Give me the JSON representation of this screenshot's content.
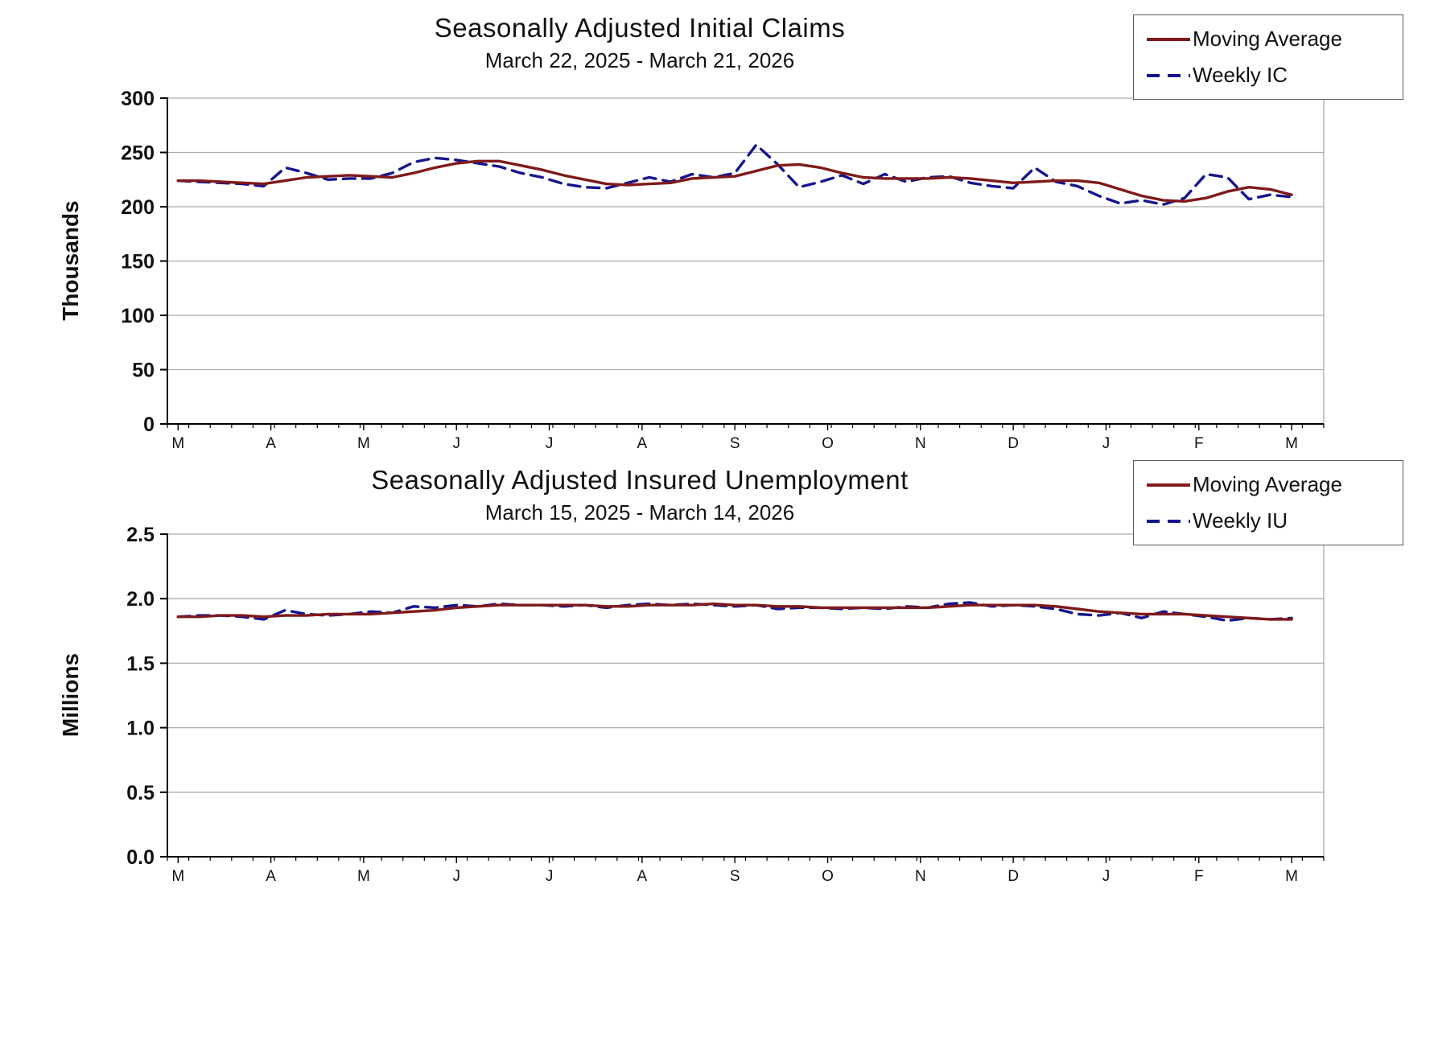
{
  "page": {
    "background": "#ffffff"
  },
  "colors": {
    "moving_average": "#7f1a1a",
    "weekly": "#15158d",
    "gridline": "#ababab",
    "axis": "#000000",
    "text": "#111111"
  },
  "chart_data": [
    {
      "type": "line",
      "title": "Seasonally Adjusted Initial Claims",
      "subtitle": "March 22, 2025 - March 21, 2026",
      "xlabel": "",
      "ylabel": "Thousands",
      "ylim": [
        0,
        300
      ],
      "yticks": [
        0,
        50,
        100,
        150,
        200,
        250,
        300
      ],
      "ytick_labels": [
        "0",
        "50",
        "100",
        "150",
        "200",
        "250",
        "300"
      ],
      "xtick_labels": [
        "M",
        "A",
        "M",
        "J",
        "J",
        "A",
        "S",
        "O",
        "N",
        "D",
        "J",
        "F",
        "M"
      ],
      "grid": true,
      "legend_position": "top-right",
      "series": [
        {
          "name": "Moving Average",
          "color": "#7f1a1a",
          "style": "solid",
          "values": [
            224,
            224,
            223,
            222,
            221,
            224,
            227,
            228,
            229,
            228,
            227,
            231,
            236,
            240,
            242,
            242,
            238,
            234,
            229,
            225,
            221,
            220,
            221,
            222,
            226,
            227,
            228,
            233,
            238,
            239,
            236,
            231,
            227,
            226,
            226,
            226,
            227,
            226,
            224,
            222,
            223,
            224,
            224,
            222,
            216,
            210,
            206,
            205,
            208,
            214,
            218,
            216,
            211
          ]
        },
        {
          "name": "Weekly IC",
          "color": "#15158d",
          "style": "dashed",
          "values": [
            224,
            223,
            222,
            221,
            219,
            236,
            231,
            225,
            226,
            226,
            231,
            241,
            245,
            243,
            240,
            237,
            231,
            227,
            221,
            218,
            217,
            222,
            227,
            223,
            230,
            227,
            231,
            257,
            239,
            218,
            223,
            229,
            221,
            230,
            223,
            227,
            228,
            222,
            219,
            217,
            236,
            223,
            219,
            210,
            203,
            206,
            202,
            208,
            230,
            227,
            207,
            211,
            209
          ]
        }
      ]
    },
    {
      "type": "line",
      "title": "Seasonally Adjusted Insured Unemployment",
      "subtitle": "March 15, 2025 - March 14, 2026",
      "xlabel": "",
      "ylabel": "Millions",
      "ylim": [
        0,
        2.5
      ],
      "yticks": [
        0,
        0.5,
        1.0,
        1.5,
        2.0,
        2.5
      ],
      "ytick_labels": [
        "0.0",
        "0.5",
        "1.0",
        "1.5",
        "2.0",
        "2.5"
      ],
      "xtick_labels": [
        "M",
        "A",
        "M",
        "J",
        "J",
        "A",
        "S",
        "O",
        "N",
        "D",
        "J",
        "F",
        "M"
      ],
      "grid": true,
      "legend_position": "top-right",
      "series": [
        {
          "name": "Moving Average",
          "color": "#7f1a1a",
          "style": "solid",
          "values": [
            1.86,
            1.86,
            1.87,
            1.87,
            1.86,
            1.87,
            1.87,
            1.88,
            1.88,
            1.88,
            1.89,
            1.9,
            1.91,
            1.93,
            1.94,
            1.95,
            1.95,
            1.95,
            1.95,
            1.95,
            1.94,
            1.94,
            1.95,
            1.95,
            1.95,
            1.96,
            1.95,
            1.95,
            1.94,
            1.94,
            1.93,
            1.93,
            1.93,
            1.93,
            1.93,
            1.93,
            1.94,
            1.95,
            1.95,
            1.95,
            1.95,
            1.94,
            1.92,
            1.9,
            1.89,
            1.88,
            1.88,
            1.88,
            1.87,
            1.86,
            1.85,
            1.84,
            1.84
          ]
        },
        {
          "name": "Weekly IU",
          "color": "#15158d",
          "style": "dashed",
          "values": [
            1.86,
            1.87,
            1.87,
            1.86,
            1.84,
            1.91,
            1.88,
            1.87,
            1.88,
            1.9,
            1.89,
            1.94,
            1.93,
            1.95,
            1.94,
            1.96,
            1.95,
            1.95,
            1.94,
            1.95,
            1.93,
            1.95,
            1.96,
            1.95,
            1.96,
            1.95,
            1.94,
            1.95,
            1.92,
            1.93,
            1.93,
            1.92,
            1.93,
            1.92,
            1.94,
            1.93,
            1.96,
            1.97,
            1.94,
            1.95,
            1.94,
            1.92,
            1.88,
            1.87,
            1.89,
            1.85,
            1.9,
            1.88,
            1.86,
            1.83,
            1.85,
            1.84,
            1.85
          ]
        }
      ]
    }
  ]
}
